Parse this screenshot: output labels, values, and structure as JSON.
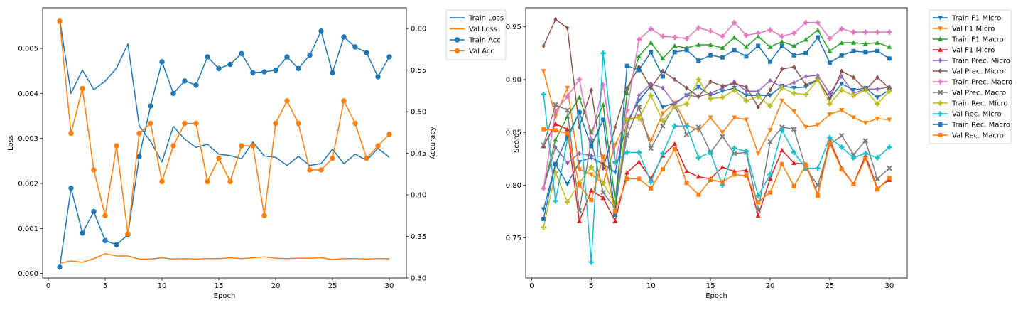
{
  "chart_data": [
    {
      "type": "line",
      "xlabel": "Epoch",
      "ylabel": "Loss",
      "ylabel_right": "Accuracy",
      "xlim": [
        -0.5,
        31.5
      ],
      "ylim": [
        -0.0001,
        0.0059
      ],
      "ylim_right": [
        0.3,
        0.625
      ],
      "xticks": [
        0,
        5,
        10,
        15,
        20,
        25,
        30
      ],
      "yticks": [
        "0.000",
        "0.001",
        "0.002",
        "0.003",
        "0.004",
        "0.005"
      ],
      "yticks_right": [
        "0.30",
        "0.35",
        "0.40",
        "0.45",
        "0.50",
        "0.55",
        "0.60"
      ],
      "grid": false,
      "legend_position": "outside-right",
      "x": [
        1,
        2,
        3,
        4,
        5,
        6,
        7,
        8,
        9,
        10,
        11,
        12,
        13,
        14,
        15,
        16,
        17,
        18,
        19,
        20,
        21,
        22,
        23,
        24,
        25,
        26,
        27,
        28,
        29,
        30
      ],
      "series": [
        {
          "name": "Train Loss",
          "axis": "left",
          "color": "#1f77b4",
          "marker": "none",
          "values": [
            0.00565,
            0.004,
            0.00452,
            0.00408,
            0.00427,
            0.00456,
            0.0051,
            0.00328,
            0.00293,
            0.00248,
            0.00327,
            0.00298,
            0.0028,
            0.00287,
            0.00265,
            0.00262,
            0.00255,
            0.00292,
            0.00261,
            0.00258,
            0.0024,
            0.0026,
            0.0024,
            0.00244,
            0.00276,
            0.00244,
            0.00265,
            0.00251,
            0.00278,
            0.00258
          ]
        },
        {
          "name": "Val Loss",
          "axis": "left",
          "color": "#ff7f0e",
          "marker": "none",
          "values": [
            0.00023,
            0.00028,
            0.00025,
            0.00033,
            0.00044,
            0.00039,
            0.00039,
            0.00032,
            0.00032,
            0.00035,
            0.00032,
            0.00033,
            0.00032,
            0.00033,
            0.00033,
            0.00035,
            0.00033,
            0.00035,
            0.00037,
            0.00034,
            0.00033,
            0.00034,
            0.00034,
            0.00035,
            0.00031,
            0.00033,
            0.00033,
            0.00032,
            0.00033,
            0.00033
          ]
        },
        {
          "name": "Train Acc",
          "axis": "right",
          "color": "#1f77b4",
          "marker": "circle",
          "values": [
            0.313,
            0.408,
            0.354,
            0.38,
            0.345,
            0.34,
            0.352,
            0.446,
            0.507,
            0.56,
            0.522,
            0.537,
            0.532,
            0.566,
            0.552,
            0.557,
            0.57,
            0.547,
            0.548,
            0.55,
            0.566,
            0.552,
            0.568,
            0.597,
            0.547,
            0.59,
            0.578,
            0.571,
            0.542,
            0.566
          ]
        },
        {
          "name": "Val Acc",
          "axis": "right",
          "color": "#ff7f0e",
          "marker": "circle",
          "values": [
            0.609,
            0.474,
            0.528,
            0.43,
            0.375,
            0.459,
            0.353,
            0.474,
            0.486,
            0.416,
            0.459,
            0.486,
            0.486,
            0.416,
            0.444,
            0.416,
            0.459,
            0.459,
            0.375,
            0.486,
            0.513,
            0.486,
            0.43,
            0.43,
            0.444,
            0.513,
            0.486,
            0.444,
            0.459,
            0.473
          ]
        }
      ]
    },
    {
      "type": "line",
      "xlabel": "Epoch",
      "ylabel": "Score",
      "xlim": [
        -0.5,
        31.5
      ],
      "ylim": [
        0.712,
        0.968
      ],
      "xticks": [
        0,
        5,
        10,
        15,
        20,
        25,
        30
      ],
      "yticks": [
        "0.75",
        "0.80",
        "0.85",
        "0.90",
        "0.95"
      ],
      "grid": false,
      "legend_position": "outside-right",
      "x": [
        1,
        2,
        3,
        4,
        5,
        6,
        7,
        8,
        9,
        10,
        11,
        12,
        13,
        14,
        15,
        16,
        17,
        18,
        19,
        20,
        21,
        22,
        23,
        24,
        25,
        26,
        27,
        28,
        29,
        30
      ],
      "series": [
        {
          "name": "Train F1 Micro",
          "color": "#1f77b4",
          "marker": "triangle-down",
          "values": [
            0.777,
            0.82,
            0.801,
            0.822,
            0.826,
            0.82,
            0.812,
            0.86,
            0.88,
            0.894,
            0.874,
            0.878,
            0.885,
            0.893,
            0.885,
            0.889,
            0.892,
            0.885,
            0.885,
            0.885,
            0.894,
            0.892,
            0.893,
            0.9,
            0.882,
            0.896,
            0.89,
            0.892,
            0.883,
            0.89
          ]
        },
        {
          "name": "Val F1 Micro",
          "color": "#ff7f0e",
          "marker": "triangle-down",
          "values": [
            0.908,
            0.865,
            0.892,
            0.815,
            0.81,
            0.802,
            0.838,
            0.862,
            0.865,
            0.842,
            0.868,
            0.878,
            0.857,
            0.852,
            0.864,
            0.85,
            0.864,
            0.862,
            0.83,
            0.852,
            0.88,
            0.87,
            0.855,
            0.857,
            0.867,
            0.871,
            0.864,
            0.859,
            0.863,
            0.862
          ]
        },
        {
          "name": "Train F1 Macro",
          "color": "#2ca02c",
          "marker": "triangle-up",
          "values": [
            0.798,
            0.843,
            0.865,
            0.883,
            0.85,
            0.876,
            0.785,
            0.887,
            0.922,
            0.935,
            0.92,
            0.932,
            0.93,
            0.933,
            0.933,
            0.93,
            0.94,
            0.931,
            0.941,
            0.931,
            0.936,
            0.932,
            0.938,
            0.947,
            0.927,
            0.935,
            0.935,
            0.934,
            0.935,
            0.931
          ]
        },
        {
          "name": "Val F1 Micro",
          "color": "#d62728",
          "marker": "triangle-up",
          "values": [
            0.837,
            0.858,
            0.853,
            0.766,
            0.795,
            0.788,
            0.766,
            0.812,
            0.822,
            0.806,
            0.828,
            0.839,
            0.813,
            0.808,
            0.806,
            0.817,
            0.813,
            0.814,
            0.771,
            0.806,
            0.833,
            0.821,
            0.82,
            0.791,
            0.843,
            0.816,
            0.801,
            0.828,
            0.797,
            0.805
          ]
        },
        {
          "name": "Train Prec. Micro",
          "color": "#9467bd",
          "marker": "diamond",
          "values": [
            0.797,
            0.836,
            0.821,
            0.83,
            0.828,
            0.827,
            0.776,
            0.855,
            0.885,
            0.896,
            0.892,
            0.877,
            0.885,
            0.884,
            0.887,
            0.892,
            0.898,
            0.889,
            0.889,
            0.899,
            0.893,
            0.897,
            0.903,
            0.904,
            0.887,
            0.903,
            0.887,
            0.891,
            0.891,
            0.893
          ]
        },
        {
          "name": "Val Prec. Micro",
          "color": "#8c564b",
          "marker": "diamond",
          "values": [
            0.932,
            0.957,
            0.949,
            0.855,
            0.89,
            0.816,
            0.855,
            0.892,
            0.912,
            0.892,
            0.908,
            0.9,
            0.892,
            0.884,
            0.898,
            0.894,
            0.896,
            0.893,
            0.874,
            0.89,
            0.91,
            0.912,
            0.895,
            0.9,
            0.882,
            0.908,
            0.902,
            0.89,
            0.902,
            0.892
          ]
        },
        {
          "name": "Train Prec. Macro",
          "color": "#e377c2",
          "marker": "plus",
          "values": [
            0.797,
            0.87,
            0.884,
            0.9,
            0.843,
            0.895,
            0.821,
            0.871,
            0.938,
            0.948,
            0.941,
            0.94,
            0.939,
            0.949,
            0.946,
            0.941,
            0.954,
            0.942,
            0.944,
            0.947,
            0.941,
            0.944,
            0.954,
            0.954,
            0.939,
            0.948,
            0.945,
            0.945,
            0.945,
            0.945
          ]
        },
        {
          "name": "Val Prec. Macro",
          "color": "#7f7f7f",
          "marker": "x",
          "values": [
            0.838,
            0.876,
            0.871,
            0.776,
            0.842,
            0.793,
            0.778,
            0.847,
            0.874,
            0.835,
            0.856,
            0.876,
            0.848,
            0.855,
            0.831,
            0.846,
            0.83,
            0.831,
            0.776,
            0.841,
            0.855,
            0.853,
            0.816,
            0.8,
            0.838,
            0.847,
            0.829,
            0.842,
            0.806,
            0.816
          ]
        },
        {
          "name": "Train Rec. Micro",
          "color": "#bcbd22",
          "marker": "plus",
          "values": [
            0.76,
            0.812,
            0.784,
            0.802,
            0.817,
            0.802,
            0.782,
            0.862,
            0.863,
            0.885,
            0.861,
            0.874,
            0.877,
            0.9,
            0.882,
            0.883,
            0.89,
            0.88,
            0.884,
            0.875,
            0.892,
            0.887,
            0.886,
            0.9,
            0.877,
            0.89,
            0.885,
            0.89,
            0.877,
            0.889
          ]
        },
        {
          "name": "Val Rec. Micro",
          "color": "#17becf",
          "marker": "plus",
          "values": [
            0.886,
            0.785,
            0.843,
            0.869,
            0.727,
            0.925,
            0.822,
            0.831,
            0.831,
            0.803,
            0.83,
            0.856,
            0.856,
            0.826,
            0.831,
            0.8,
            0.835,
            0.832,
            0.79,
            0.81,
            0.852,
            0.831,
            0.816,
            0.816,
            0.845,
            0.836,
            0.826,
            0.83,
            0.826,
            0.836
          ]
        },
        {
          "name": "Train Rec. Macro",
          "color": "#1f77b4",
          "marker": "square",
          "values": [
            0.768,
            0.82,
            0.846,
            0.869,
            0.837,
            0.862,
            0.772,
            0.913,
            0.909,
            0.926,
            0.903,
            0.926,
            0.928,
            0.918,
            0.923,
            0.921,
            0.928,
            0.922,
            0.932,
            0.917,
            0.932,
            0.923,
            0.925,
            0.94,
            0.916,
            0.923,
            0.927,
            0.926,
            0.927,
            0.92
          ]
        },
        {
          "name": "Val Rec. Macro",
          "color": "#ff7f0e",
          "marker": "square",
          "values": [
            0.853,
            0.852,
            0.849,
            0.8,
            0.786,
            0.827,
            0.775,
            0.806,
            0.806,
            0.797,
            0.815,
            0.834,
            0.802,
            0.791,
            0.805,
            0.803,
            0.81,
            0.809,
            0.784,
            0.793,
            0.82,
            0.799,
            0.819,
            0.79,
            0.84,
            0.815,
            0.801,
            0.825,
            0.796,
            0.807
          ]
        }
      ]
    }
  ]
}
